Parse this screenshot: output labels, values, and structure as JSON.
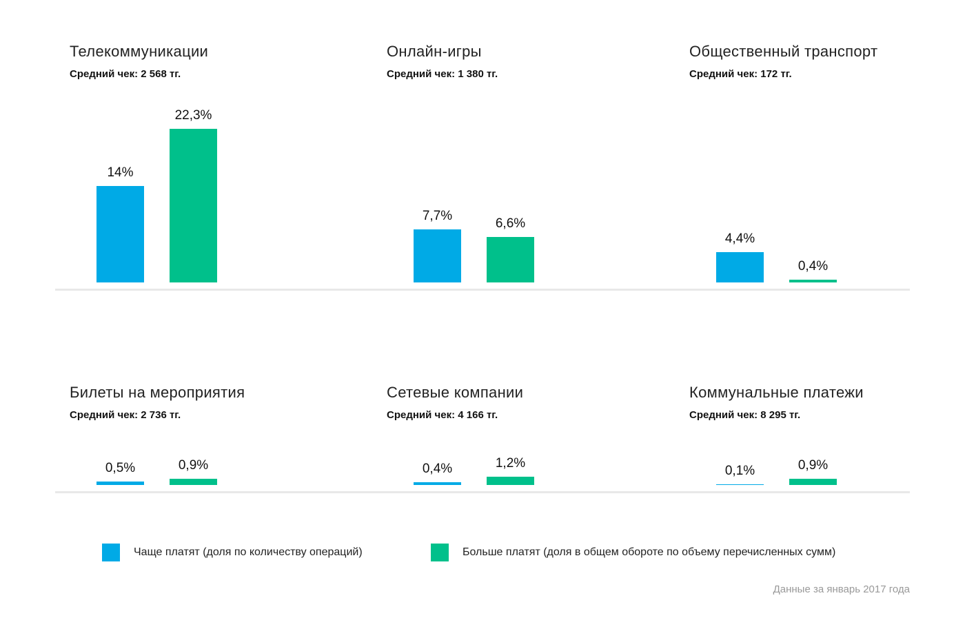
{
  "colors": {
    "series1": "#00aae6",
    "series2": "#00c08b",
    "baseline": "#e8e8e8"
  },
  "chart_data": {
    "type": "bar",
    "series": [
      {
        "name": "Чаще платят (доля по количеству операций)"
      },
      {
        "name": "Больше платят (доля в общем обороте по объему перечисленных сумм)"
      }
    ],
    "panels": [
      {
        "title": "Телекоммуникации",
        "subtitle": "Средний чек: 2 568 тг.",
        "values": [
          14,
          22.3
        ],
        "labels": [
          "14%",
          "22,3%"
        ]
      },
      {
        "title": "Онлайн-игры",
        "subtitle": "Средний чек: 1 380 тг.",
        "values": [
          7.7,
          6.6
        ],
        "labels": [
          "7,7%",
          "6,6%"
        ]
      },
      {
        "title": "Общественный транспорт",
        "subtitle": "Средний чек: 172 тг.",
        "values": [
          4.4,
          0.4
        ],
        "labels": [
          "4,4%",
          "0,4%"
        ]
      },
      {
        "title": "Билеты на мероприятия",
        "subtitle": "Средний чек: 2 736 тг.",
        "values": [
          0.5,
          0.9
        ],
        "labels": [
          "0,5%",
          "0,9%"
        ]
      },
      {
        "title": "Сетевые компании",
        "subtitle": "Средний чек: 4 166 тг.",
        "values": [
          0.4,
          1.2
        ],
        "labels": [
          "0,4%",
          "1,2%"
        ]
      },
      {
        "title": "Коммунальные платежи",
        "subtitle": "Средний чек: 8 295 тг.",
        "values": [
          0.1,
          0.9
        ],
        "labels": [
          "0,1%",
          "0,9%"
        ]
      }
    ]
  },
  "legend": {
    "item1": "Чаще платят (доля по количеству операций)",
    "item2": "Больше платят (доля в общем обороте по объему перечисленных сумм)"
  },
  "footnote": "Данные за январь 2017 года"
}
